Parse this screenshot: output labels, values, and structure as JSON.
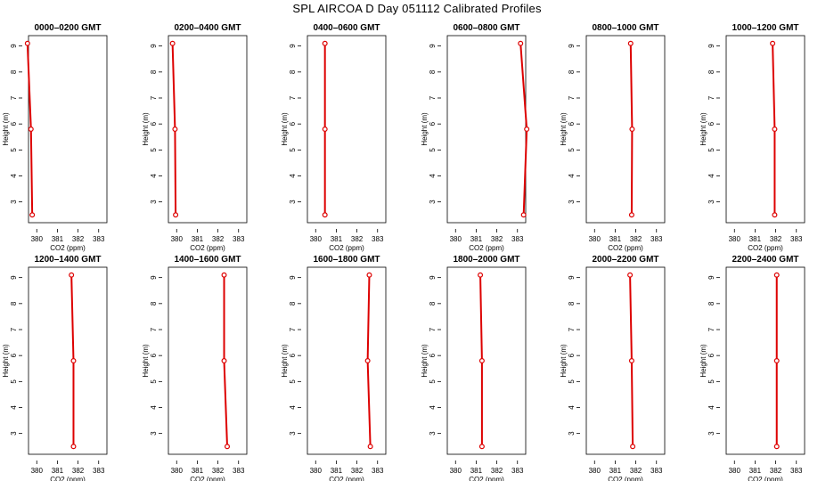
{
  "title": "SPL AIRCOA D  Day 051112  Calibrated Profiles",
  "colors": {
    "series": "#dd0000",
    "axes": "#000000",
    "background": "#ffffff"
  },
  "chart_data": [
    {
      "type": "line",
      "title": "0000–0200 GMT",
      "xlabel": "CO2 (ppm)",
      "ylabel": "Height (m)",
      "xlim": [
        379.6,
        383.4
      ],
      "ylim": [
        2.2,
        9.4
      ],
      "xticks": [
        380,
        381,
        382,
        383
      ],
      "yticks": [
        3,
        4,
        5,
        6,
        7,
        8,
        9
      ],
      "grid": false,
      "points": [
        {
          "x": 379.55,
          "y": 9.1
        },
        {
          "x": 379.72,
          "y": 5.8
        },
        {
          "x": 379.78,
          "y": 2.5
        }
      ]
    },
    {
      "type": "line",
      "title": "0200–0400 GMT",
      "xlabel": "CO2 (ppm)",
      "ylabel": "Height (m)",
      "xlim": [
        379.6,
        383.4
      ],
      "ylim": [
        2.2,
        9.4
      ],
      "xticks": [
        380,
        381,
        382,
        383
      ],
      "yticks": [
        3,
        4,
        5,
        6,
        7,
        8,
        9
      ],
      "grid": false,
      "points": [
        {
          "x": 379.8,
          "y": 9.1
        },
        {
          "x": 379.92,
          "y": 5.8
        },
        {
          "x": 379.95,
          "y": 2.5
        }
      ]
    },
    {
      "type": "line",
      "title": "0400–0600 GMT",
      "xlabel": "CO2 (ppm)",
      "ylabel": "Height (m)",
      "xlim": [
        379.6,
        383.4
      ],
      "ylim": [
        2.2,
        9.4
      ],
      "xticks": [
        380,
        381,
        382,
        383
      ],
      "yticks": [
        3,
        4,
        5,
        6,
        7,
        8,
        9
      ],
      "grid": false,
      "points": [
        {
          "x": 380.45,
          "y": 9.1
        },
        {
          "x": 380.45,
          "y": 5.8
        },
        {
          "x": 380.45,
          "y": 2.5
        }
      ]
    },
    {
      "type": "line",
      "title": "0600–0800 GMT",
      "xlabel": "CO2 (ppm)",
      "ylabel": "Height (m)",
      "xlim": [
        379.6,
        383.4
      ],
      "ylim": [
        2.2,
        9.4
      ],
      "xticks": [
        380,
        381,
        382,
        383
      ],
      "yticks": [
        3,
        4,
        5,
        6,
        7,
        8,
        9
      ],
      "grid": false,
      "points": [
        {
          "x": 383.15,
          "y": 9.1
        },
        {
          "x": 383.45,
          "y": 5.8
        },
        {
          "x": 383.3,
          "y": 2.5
        }
      ]
    },
    {
      "type": "line",
      "title": "0800–1000 GMT",
      "xlabel": "CO2 (ppm)",
      "ylabel": "Height (m)",
      "xlim": [
        379.6,
        383.4
      ],
      "ylim": [
        2.2,
        9.4
      ],
      "xticks": [
        380,
        381,
        382,
        383
      ],
      "yticks": [
        3,
        4,
        5,
        6,
        7,
        8,
        9
      ],
      "grid": false,
      "points": [
        {
          "x": 381.75,
          "y": 9.1
        },
        {
          "x": 381.82,
          "y": 5.8
        },
        {
          "x": 381.8,
          "y": 2.5
        }
      ]
    },
    {
      "type": "line",
      "title": "1000–1200 GMT",
      "xlabel": "CO2 (ppm)",
      "ylabel": "Height (m)",
      "xlim": [
        379.6,
        383.4
      ],
      "ylim": [
        2.2,
        9.4
      ],
      "xticks": [
        380,
        381,
        382,
        383
      ],
      "yticks": [
        3,
        4,
        5,
        6,
        7,
        8,
        9
      ],
      "grid": false,
      "points": [
        {
          "x": 381.85,
          "y": 9.1
        },
        {
          "x": 381.95,
          "y": 5.8
        },
        {
          "x": 381.95,
          "y": 2.5
        }
      ]
    },
    {
      "type": "line",
      "title": "1200–1400 GMT",
      "xlabel": "CO2 (ppm)",
      "ylabel": "Height (m)",
      "xlim": [
        379.6,
        383.4
      ],
      "ylim": [
        2.2,
        9.4
      ],
      "xticks": [
        380,
        381,
        382,
        383
      ],
      "yticks": [
        3,
        4,
        5,
        6,
        7,
        8,
        9
      ],
      "grid": false,
      "points": [
        {
          "x": 381.68,
          "y": 9.1
        },
        {
          "x": 381.78,
          "y": 5.8
        },
        {
          "x": 381.78,
          "y": 2.5
        }
      ]
    },
    {
      "type": "line",
      "title": "1400–1600 GMT",
      "xlabel": "CO2 (ppm)",
      "ylabel": "Height (m)",
      "xlim": [
        379.6,
        383.4
      ],
      "ylim": [
        2.2,
        9.4
      ],
      "xticks": [
        380,
        381,
        382,
        383
      ],
      "yticks": [
        3,
        4,
        5,
        6,
        7,
        8,
        9
      ],
      "grid": false,
      "points": [
        {
          "x": 382.3,
          "y": 9.1
        },
        {
          "x": 382.3,
          "y": 5.8
        },
        {
          "x": 382.45,
          "y": 2.5
        }
      ]
    },
    {
      "type": "line",
      "title": "1600–1800 GMT",
      "xlabel": "CO2 (ppm)",
      "ylabel": "Height (m)",
      "xlim": [
        379.6,
        383.4
      ],
      "ylim": [
        2.2,
        9.4
      ],
      "xticks": [
        380,
        381,
        382,
        383
      ],
      "yticks": [
        3,
        4,
        5,
        6,
        7,
        8,
        9
      ],
      "grid": false,
      "points": [
        {
          "x": 382.6,
          "y": 9.1
        },
        {
          "x": 382.52,
          "y": 5.8
        },
        {
          "x": 382.65,
          "y": 2.5
        }
      ]
    },
    {
      "type": "line",
      "title": "1800–2000 GMT",
      "xlabel": "CO2 (ppm)",
      "ylabel": "Height (m)",
      "xlim": [
        379.6,
        383.4
      ],
      "ylim": [
        2.2,
        9.4
      ],
      "xticks": [
        380,
        381,
        382,
        383
      ],
      "yticks": [
        3,
        4,
        5,
        6,
        7,
        8,
        9
      ],
      "grid": false,
      "points": [
        {
          "x": 381.2,
          "y": 9.1
        },
        {
          "x": 381.28,
          "y": 5.8
        },
        {
          "x": 381.28,
          "y": 2.5
        }
      ]
    },
    {
      "type": "line",
      "title": "2000–2200 GMT",
      "xlabel": "CO2 (ppm)",
      "ylabel": "Height (m)",
      "xlim": [
        379.6,
        383.4
      ],
      "ylim": [
        2.2,
        9.4
      ],
      "xticks": [
        380,
        381,
        382,
        383
      ],
      "yticks": [
        3,
        4,
        5,
        6,
        7,
        8,
        9
      ],
      "grid": false,
      "points": [
        {
          "x": 381.72,
          "y": 9.1
        },
        {
          "x": 381.8,
          "y": 5.8
        },
        {
          "x": 381.85,
          "y": 2.5
        }
      ]
    },
    {
      "type": "line",
      "title": "2200–2400 GMT",
      "xlabel": "CO2 (ppm)",
      "ylabel": "Height (m)",
      "xlim": [
        379.6,
        383.4
      ],
      "ylim": [
        2.2,
        9.4
      ],
      "xticks": [
        380,
        381,
        382,
        383
      ],
      "yticks": [
        3,
        4,
        5,
        6,
        7,
        8,
        9
      ],
      "grid": false,
      "points": [
        {
          "x": 382.05,
          "y": 9.1
        },
        {
          "x": 382.05,
          "y": 5.8
        },
        {
          "x": 382.05,
          "y": 2.5
        }
      ]
    }
  ]
}
